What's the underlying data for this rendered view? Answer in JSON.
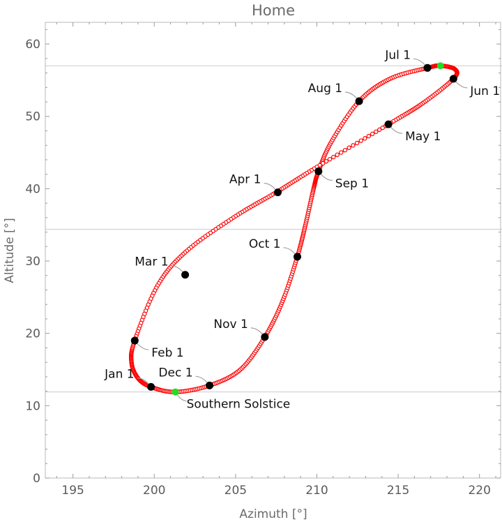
{
  "chart_data": {
    "type": "scatter",
    "title": "Home",
    "xlabel": "Azimuth [°]",
    "ylabel": "Altitude [°]",
    "xlim": [
      193.3,
      221.3
    ],
    "ylim": [
      0,
      63
    ],
    "xticks": [
      195,
      200,
      205,
      210,
      215,
      220
    ],
    "yticks": [
      0,
      10,
      20,
      30,
      40,
      50,
      60
    ],
    "xtick_labels": [
      "195",
      "200",
      "205",
      "210",
      "215",
      "220"
    ],
    "ytick_labels": [
      "0",
      "10",
      "20",
      "30",
      "40",
      "50",
      "60"
    ],
    "reference_lines_altitude": [
      57.0,
      34.4,
      11.9
    ],
    "grid": false,
    "colors": {
      "analemma": "#ff0000",
      "month_marker": "#000000",
      "solstice_marker": "#22dd22",
      "reference_line": "#cccccc",
      "leader": "#a0a0a0"
    },
    "analemma_points": [
      [
        198.8,
        19.0
      ],
      [
        198.6,
        16.0
      ],
      [
        199.0,
        13.8
      ],
      [
        199.8,
        12.6
      ],
      [
        201.3,
        11.9
      ],
      [
        203.4,
        12.8
      ],
      [
        205.3,
        15.0
      ],
      [
        206.8,
        19.5
      ],
      [
        207.9,
        24.5
      ],
      [
        208.8,
        30.6
      ],
      [
        209.3,
        35.0
      ],
      [
        209.8,
        40.0
      ],
      [
        210.1,
        42.4
      ],
      [
        210.9,
        46.5
      ],
      [
        212.6,
        52.1
      ],
      [
        214.5,
        55.2
      ],
      [
        216.8,
        56.7
      ],
      [
        217.6,
        57.0
      ],
      [
        218.5,
        56.5
      ],
      [
        218.4,
        55.2
      ],
      [
        216.5,
        51.8
      ],
      [
        214.4,
        48.9
      ],
      [
        210.0,
        43.0
      ],
      [
        207.5,
        39.5
      ],
      [
        205.0,
        36.2
      ],
      [
        202.0,
        31.4
      ],
      [
        200.2,
        26.6
      ],
      [
        198.8,
        19.0
      ]
    ],
    "month_markers": [
      {
        "label": "Jan 1",
        "azimuth": 199.8,
        "altitude": 12.6,
        "side": "left"
      },
      {
        "label": "Feb 1",
        "azimuth": 198.8,
        "altitude": 19.0,
        "side": "right"
      },
      {
        "label": "Mar 1",
        "azimuth": 201.9,
        "altitude": 28.1,
        "side": "left"
      },
      {
        "label": "Apr 1",
        "azimuth": 207.6,
        "altitude": 39.5,
        "side": "left"
      },
      {
        "label": "May 1",
        "azimuth": 214.4,
        "altitude": 48.9,
        "side": "right"
      },
      {
        "label": "Jun 1",
        "azimuth": 218.4,
        "altitude": 55.2,
        "side": "right"
      },
      {
        "label": "Jul 1",
        "azimuth": 216.8,
        "altitude": 56.7,
        "side": "left"
      },
      {
        "label": "Aug 1",
        "azimuth": 212.6,
        "altitude": 52.1,
        "side": "left"
      },
      {
        "label": "Sep 1",
        "azimuth": 210.1,
        "altitude": 42.4,
        "side": "right"
      },
      {
        "label": "Oct 1",
        "azimuth": 208.8,
        "altitude": 30.6,
        "side": "left"
      },
      {
        "label": "Nov 1",
        "azimuth": 206.8,
        "altitude": 19.5,
        "side": "left"
      },
      {
        "label": "Dec 1",
        "azimuth": 203.4,
        "altitude": 12.8,
        "side": "left"
      }
    ],
    "solstice_markers": [
      {
        "label": "Southern Solstice",
        "azimuth": 201.3,
        "altitude": 11.9,
        "labeled": true
      },
      {
        "label": "",
        "azimuth": 217.6,
        "altitude": 57.0,
        "labeled": false
      }
    ]
  }
}
